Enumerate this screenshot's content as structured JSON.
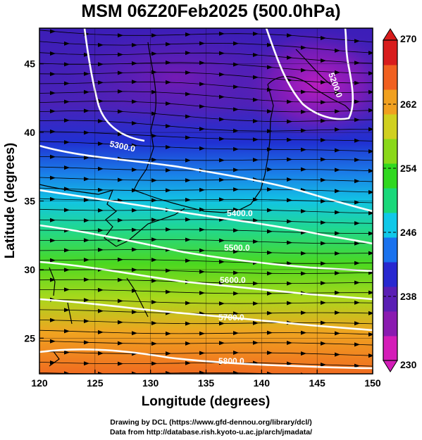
{
  "title": "MSM 06Z20Feb2025 (500.0hPa)",
  "credits": {
    "line1": "Drawing by DCL (https://www.gfd-dennou.org/library/dcl/)",
    "line2": "Data from http://database.rish.kyoto-u.ac.jp/arch/jmadata/"
  },
  "axes": {
    "xlabel": "Longitude (degrees)",
    "ylabel": "Latitude  (degrees)",
    "xlim": [
      120,
      150
    ],
    "ylim": [
      22.4,
      47.6
    ],
    "xticks": [
      "120",
      "125",
      "130",
      "135",
      "140",
      "145",
      "150"
    ],
    "yticks": [
      "25",
      "30",
      "35",
      "40",
      "45"
    ]
  },
  "colorbar": {
    "min": 230,
    "max": 270,
    "labels": [
      "230",
      "238",
      "246",
      "254",
      "262",
      "270"
    ],
    "colors": [
      "#d41cb8",
      "#8a1ab0",
      "#5a1eb4",
      "#2828d0",
      "#1a72ee",
      "#10c8e8",
      "#1ad87a",
      "#30d820",
      "#8ad81a",
      "#d0d020",
      "#f0a020",
      "#f06020",
      "#d81c1c"
    ]
  },
  "contours": [
    {
      "label": "5300.0"
    },
    {
      "label": "5400.0"
    },
    {
      "label": "5500.0"
    },
    {
      "label": "5600.0"
    },
    {
      "label": "5700.0"
    },
    {
      "label": "5800.0"
    },
    {
      "label": "5200.0"
    }
  ],
  "chart_data": {
    "type": "heatmap",
    "title": "MSM 06Z20Feb2025 (500.0hPa)",
    "xlabel": "Longitude (degrees)",
    "ylabel": "Latitude  (degrees)",
    "xlim": [
      120,
      150
    ],
    "ylim": [
      22.4,
      47.6
    ],
    "shaded_variable_range": [
      230,
      270
    ],
    "geopotential_height_contours": [
      5200,
      5300,
      5400,
      5500,
      5600,
      5700,
      5800
    ]
  }
}
